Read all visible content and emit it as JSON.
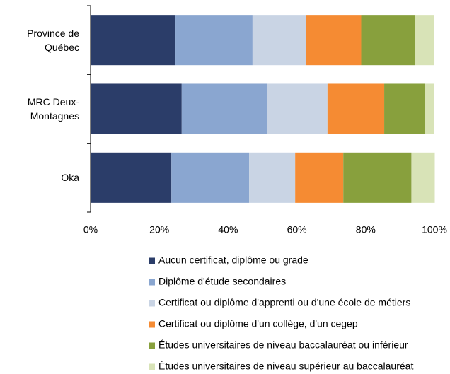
{
  "chart_data": {
    "type": "stacked-bar-horizontal",
    "categories": [
      "Province de Québec",
      "MRC Deux-Montagnes",
      "Oka"
    ],
    "series": [
      {
        "name": "Aucun certificat, diplôme ou grade",
        "color": "#2b3d69",
        "values": [
          24.7,
          26.5,
          23.5
        ]
      },
      {
        "name": "Diplôme d'étude secondaires",
        "color": "#8aa6d0",
        "values": [
          22.4,
          24.9,
          22.6
        ]
      },
      {
        "name": "Certificat ou diplôme d'apprenti ou d'une école de métiers",
        "color": "#c9d4e4",
        "values": [
          15.6,
          17.5,
          13.4
        ]
      },
      {
        "name": "Certificat ou diplôme d'un collège, d'un cegep",
        "color": "#f58b33",
        "values": [
          16.0,
          16.5,
          14.0
        ]
      },
      {
        "name": "Études universitaires de niveau baccalauréat ou inférieur",
        "color": "#88a03d",
        "values": [
          15.6,
          11.9,
          19.8
        ]
      },
      {
        "name": "Études universitaires de niveau supérieur au baccalauréat",
        "color": "#d8e3b7",
        "values": [
          5.6,
          2.7,
          6.8
        ]
      }
    ],
    "xlim": [
      0,
      100
    ],
    "xticks": [
      {
        "value": 0,
        "label": "0%"
      },
      {
        "value": 20,
        "label": "20%"
      },
      {
        "value": 40,
        "label": "40%"
      },
      {
        "value": 60,
        "label": "60%"
      },
      {
        "value": 80,
        "label": "80%"
      },
      {
        "value": 100,
        "label": "100%"
      }
    ],
    "legend": "bottom"
  }
}
